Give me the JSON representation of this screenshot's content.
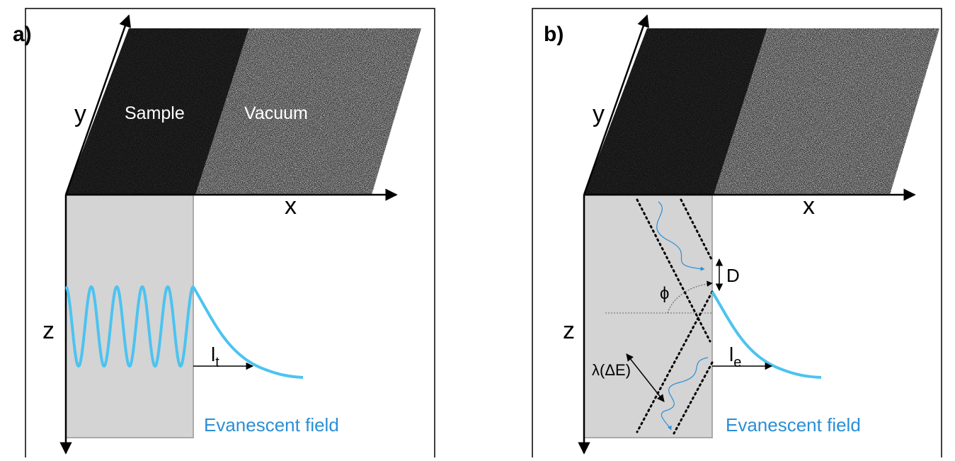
{
  "panels": [
    {
      "label": "a)",
      "axes": {
        "x": "x",
        "y": "y",
        "z": "z"
      },
      "regions": [
        "Sample",
        "Vacuum"
      ],
      "decay_length": {
        "symbol": "l",
        "subscript": "t"
      },
      "field_label": "Evanescent field"
    },
    {
      "label": "b)",
      "axes": {
        "x": "x",
        "y": "y",
        "z": "z"
      },
      "annotations": {
        "spacing": "D",
        "angle": "ϕ",
        "wavelength": "λ(ΔE)"
      },
      "decay_length": {
        "symbol": "l",
        "subscript": "e"
      },
      "field_label": "Evanescent field"
    }
  ]
}
